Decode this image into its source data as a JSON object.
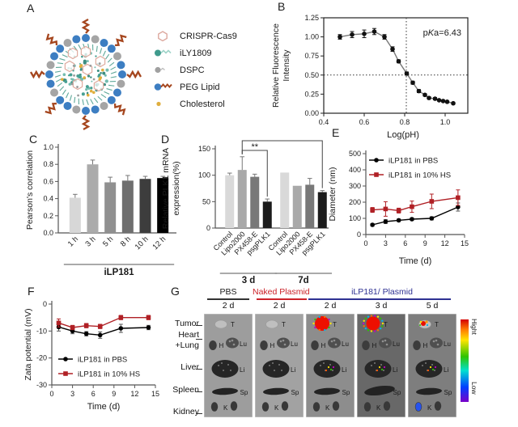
{
  "panels": {
    "a": "A",
    "b": "B",
    "c": "C",
    "d": "D",
    "e": "E",
    "f": "F",
    "g": "G"
  },
  "panel_a": {
    "legend": [
      {
        "icon": "crispr-hexagon-icon",
        "label": "CRISPR-Cas9"
      },
      {
        "icon": "ily1809-lipid-icon",
        "label": "iLY1809"
      },
      {
        "icon": "dspc-lipid-icon",
        "label": "DSPC"
      },
      {
        "icon": "peg-lipid-icon",
        "label": "PEG Lipid"
      },
      {
        "icon": "cholesterol-dot-icon",
        "label": "Cholesterol"
      }
    ]
  },
  "chart_data": [
    {
      "id": "B",
      "type": "scatter",
      "xlabel": "Log(pH)",
      "ylabel_lines": [
        "Relative Fluorescence",
        "Intensity"
      ],
      "xlim": [
        0.4,
        1.112
      ],
      "ylim": [
        0,
        1.25
      ],
      "xticks": [
        0.4,
        0.6,
        0.8,
        1.0
      ],
      "xtick_labels": [
        "0.4",
        "0.6",
        "0.8",
        "1.0"
      ],
      "yticks": [
        0,
        0.25,
        0.5,
        0.75,
        1,
        1.25
      ],
      "ytick_labels": [
        "0.00",
        "0.25",
        "0.50",
        "0.75",
        "1.00",
        "1.25"
      ],
      "box": true,
      "annotation": {
        "pre": "p",
        "italic": "K",
        "post": "a=6.43"
      },
      "ref_x": 0.808,
      "ref_y": 0.5,
      "x": [
        0.48,
        0.54,
        0.6,
        0.65,
        0.7,
        0.74,
        0.77,
        0.81,
        0.84,
        0.87,
        0.9,
        0.92,
        0.95,
        0.97,
        0.99,
        1.01,
        1.04
      ],
      "series": [
        {
          "name": "relative fluorescence",
          "color": "#111111",
          "line_color": "#777777",
          "marker": "circle",
          "values": [
            1.0,
            1.03,
            1.04,
            1.07,
            1.0,
            0.84,
            0.68,
            0.52,
            0.4,
            0.29,
            0.24,
            0.2,
            0.19,
            0.17,
            0.16,
            0.15,
            0.13
          ],
          "errors": [
            0.03,
            0.04,
            0.05,
            0.04,
            0.03,
            0.03,
            0.02,
            0.02,
            0.02,
            0.02,
            0.015,
            0.015,
            0.015,
            0.01,
            0.01,
            0.01,
            0.01
          ]
        }
      ]
    },
    {
      "id": "C",
      "type": "bar",
      "categories": [
        "1 h",
        "3 h",
        "5 h",
        "8 h",
        "10 h",
        "12 h"
      ],
      "values": [
        0.41,
        0.8,
        0.59,
        0.61,
        0.63,
        0.64
      ],
      "errors": [
        0.04,
        0.05,
        0.06,
        0.06,
        0.03,
        0.02
      ],
      "bar_colors": [
        "#d7d7d7",
        "#ababab",
        "#909090",
        "#6f6f6f",
        "#3d3d3d",
        "#000000"
      ],
      "ylabel_lines": [
        "Pearson's correlation"
      ],
      "ylim": [
        0,
        1.0
      ],
      "yticks": [
        0,
        0.2,
        0.4,
        0.6,
        0.8,
        1.0
      ],
      "ytick_labels": [
        "0.0",
        "0.2",
        "0.4",
        "0.6",
        "0.8",
        "1.0"
      ],
      "groups": [
        {
          "label": "iLP181",
          "from": 0,
          "to": 5
        }
      ],
      "significance": []
    },
    {
      "id": "D",
      "type": "bar",
      "categories": [
        "Control",
        "Lipo2000",
        "PX458-E",
        "psgPLK1",
        "Control",
        "Lipo2000",
        "PX458-E",
        "psgPLK1"
      ],
      "values": [
        100,
        110,
        97,
        50,
        105,
        80,
        82,
        68
      ],
      "errors": [
        4,
        25,
        5,
        5,
        0,
        0,
        12,
        3
      ],
      "bar_colors": [
        "#d9d9d9",
        "#a9a9a9",
        "#787878",
        "#1c1c1c",
        "#d9d9d9",
        "#a9a9a9",
        "#787878",
        "#1c1c1c"
      ],
      "ylabel_lines": [
        "Relative PLK1 mRNA",
        "expression(%)"
      ],
      "ylim": [
        0,
        150
      ],
      "yticks": [
        0,
        50,
        100,
        150
      ],
      "ytick_labels": [
        "0",
        "50",
        "100",
        "150"
      ],
      "groups": [
        {
          "label": "3 d",
          "from": 0,
          "to": 3
        },
        {
          "label": "7d",
          "from": 4,
          "to": 7
        }
      ],
      "significance": [
        {
          "label": "**",
          "from": 1,
          "to": 3
        },
        {
          "label": "*",
          "from": 1,
          "to": 7
        }
      ]
    },
    {
      "id": "E",
      "type": "line",
      "xlabel": "Time (d)",
      "ylabel_lines": [
        "Diameter (nm)"
      ],
      "xlim": [
        0,
        15
      ],
      "ylim": [
        0,
        500
      ],
      "xticks": [
        0,
        3,
        6,
        9,
        12,
        15
      ],
      "xtick_labels": [
        "0",
        "3",
        "6",
        "9",
        "12",
        "15"
      ],
      "yticks": [
        0,
        100,
        200,
        300,
        400,
        500
      ],
      "ytick_labels": [
        "0",
        "100",
        "200",
        "300",
        "400",
        "500"
      ],
      "x": [
        1,
        3,
        5,
        7,
        10,
        14
      ],
      "series": [
        {
          "name": "iLP181 in PBS",
          "color": "#000000",
          "marker": "circle",
          "values": [
            60,
            80,
            88,
            95,
            100,
            170
          ],
          "errors": [
            8,
            12,
            8,
            8,
            10,
            25
          ]
        },
        {
          "name": "iLP181 in 10% HS",
          "color": "#b02025",
          "marker": "square",
          "values": [
            152,
            158,
            148,
            172,
            205,
            228
          ],
          "errors": [
            15,
            45,
            15,
            35,
            45,
            48
          ]
        }
      ],
      "legend_pos": "top"
    },
    {
      "id": "F",
      "type": "line",
      "xlabel": "Time (d)",
      "ylabel_lines": [
        "Zata potential (mV)"
      ],
      "xlim": [
        0,
        15
      ],
      "ylim": [
        -30,
        0
      ],
      "xticks": [
        0,
        3,
        6,
        9,
        12,
        15
      ],
      "xtick_labels": [
        "0",
        "3",
        "6",
        "9",
        "12",
        "15"
      ],
      "yticks": [
        0,
        -10,
        -20,
        -30
      ],
      "ytick_labels": [
        "0",
        "-10",
        "-20",
        "-30"
      ],
      "x": [
        1,
        3,
        5,
        7,
        10,
        14
      ],
      "series": [
        {
          "name": "iLP181 in PBS",
          "color": "#000000",
          "marker": "circle",
          "values": [
            -8.5,
            -10,
            -11,
            -11.5,
            -9,
            -8.7
          ],
          "errors": [
            1.5,
            1,
            0.8,
            1.2,
            1.5,
            0.8
          ]
        },
        {
          "name": "iLP181 in 10% HS",
          "color": "#b02025",
          "marker": "square",
          "values": [
            -7,
            -8.7,
            -8,
            -8.3,
            -5,
            -5
          ],
          "errors": [
            1.5,
            0.8,
            0.8,
            0.8,
            0.8,
            0.8
          ]
        }
      ],
      "legend_pos": "bottom"
    }
  ],
  "panel_g": {
    "groups": [
      {
        "label": "PBS",
        "color": "#1a1a1a",
        "underline": "#333333"
      },
      {
        "label": "Naked Plasmid",
        "color": "#cb2128",
        "underline": "#cb2128"
      },
      {
        "label": "iLP181/ Plasmid",
        "color": "#2e3192",
        "underline": "#2e3192"
      }
    ],
    "rows": [
      "Tumor",
      "Heart",
      "+Lung",
      "Liver",
      "Spleen",
      "Kidney"
    ],
    "tags": {
      "tumor": "T",
      "heart": "H",
      "lung": "Lu",
      "liver": "Li",
      "spleen": "Sp",
      "kidney": "K"
    },
    "columns": [
      {
        "group": "PBS",
        "time": "2 d",
        "bg": "#9d9d9d",
        "tumor_signal": "none",
        "liver_speckles": false,
        "kidney_signal": "none",
        "big_spleen": false
      },
      {
        "group": "Naked Plasmid",
        "time": "2 d",
        "bg": "#a2a2a2",
        "tumor_signal": "none",
        "liver_speckles": false,
        "kidney_signal": "none",
        "big_spleen": false
      },
      {
        "group": "iLP181/ Plasmid",
        "time": "2 d",
        "bg": "#8d8d8d",
        "tumor_signal": "strong",
        "liver_speckles": true,
        "kidney_signal": "none",
        "big_spleen": false
      },
      {
        "group": "iLP181/ Plasmid",
        "time": "3 d",
        "bg": "#686868",
        "tumor_signal": "strong-speckled",
        "liver_speckles": true,
        "kidney_signal": "none",
        "big_spleen": true
      },
      {
        "group": "iLP181/ Plasmid",
        "time": "5 d",
        "bg": "#7e7e7e",
        "tumor_signal": "weak",
        "liver_speckles": true,
        "kidney_signal": "blue",
        "big_spleen": false
      }
    ],
    "colorbar": {
      "high": "Hight",
      "low": "Low"
    }
  }
}
